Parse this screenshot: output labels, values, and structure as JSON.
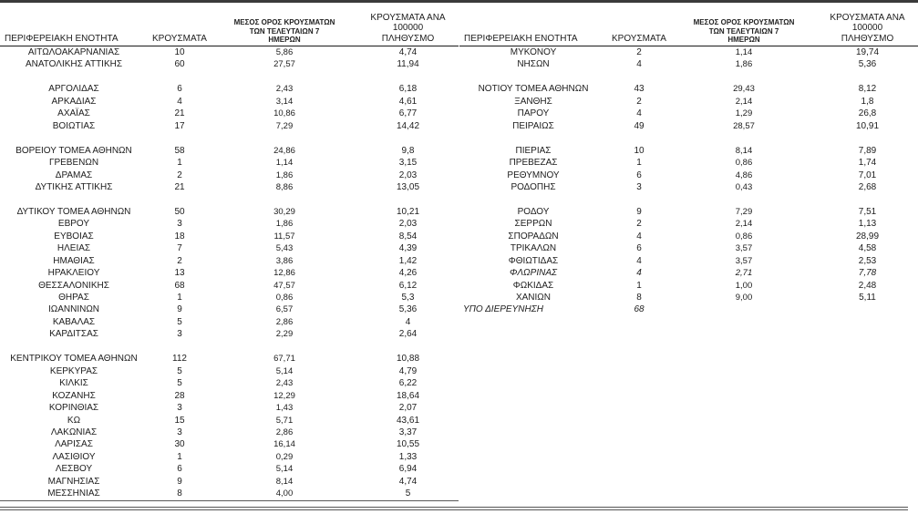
{
  "colors": {
    "background": "#ffffff",
    "text": "#1c1c1c",
    "rule_top": "#3a3a3a",
    "rule_header": "#1a1a1a",
    "rule_bottom_double": "#555555"
  },
  "headers": {
    "region": "ΠΕΡΙΦΕΡΕΙΑΚΗ ΕΝΟΤΗΤΑ",
    "cases": "ΚΡΟΥΣΜΑΤΑ",
    "avg7": "ΜΕΣΟΣ ΟΡΟΣ ΚΡΟΥΣΜΑΤΩΝ\nΤΩΝ ΤΕΛΕΥΤΑΙΩΝ 7\nΗΜΕΡΩΝ",
    "per100k": "ΚΡΟΥΣΜΑΤΑ ΑΝΑ 100000\nΠΛΗΘΥΣΜΟ"
  },
  "chart_data": {
    "type": "table",
    "columns": [
      "ΠΕΡΙΦΕΡΕΙΑΚΗ ΕΝΟΤΗΤΑ",
      "ΚΡΟΥΣΜΑΤΑ",
      "ΜΕΣΟΣ ΟΡΟΣ ΚΡΟΥΣΜΑΤΩΝ ΤΩΝ ΤΕΛΕΥΤΑΙΩΝ 7 ΗΜΕΡΩΝ",
      "ΚΡΟΥΣΜΑΤΑ ΑΝΑ 100000 ΠΛΗΘΥΣΜΟ"
    ],
    "left_rows": [
      {
        "name": "ΑΙΤΩΛΟΑΚΑΡΝΑΝΙΑΣ",
        "cases": "10",
        "avg7": "5,86",
        "per100k": "4,74"
      },
      {
        "name": "ΑΝΑΤΟΛΙΚΗΣ ΑΤΤΙΚΗΣ",
        "cases": "60",
        "avg7": "27,57",
        "per100k": "11,94"
      },
      {
        "blank": true
      },
      {
        "name": "ΑΡΓΟΛΙΔΑΣ",
        "cases": "6",
        "avg7": "2,43",
        "per100k": "6,18"
      },
      {
        "name": "ΑΡΚΑΔΙΑΣ",
        "cases": "4",
        "avg7": "3,14",
        "per100k": "4,61"
      },
      {
        "name": "ΑΧΑΪΑΣ",
        "cases": "21",
        "avg7": "10,86",
        "per100k": "6,77"
      },
      {
        "name": "ΒΟΙΩΤΙΑΣ",
        "cases": "17",
        "avg7": "7,29",
        "per100k": "14,42"
      },
      {
        "blank": true
      },
      {
        "name": "ΒΟΡΕΙΟΥ ΤΟΜΕΑ ΑΘΗΝΩΝ",
        "cases": "58",
        "avg7": "24,86",
        "per100k": "9,8"
      },
      {
        "name": "ΓΡΕΒΕΝΩΝ",
        "cases": "1",
        "avg7": "1,14",
        "per100k": "3,15"
      },
      {
        "name": "ΔΡΑΜΑΣ",
        "cases": "2",
        "avg7": "1,86",
        "per100k": "2,03"
      },
      {
        "name": "ΔΥΤΙΚΗΣ ΑΤΤΙΚΗΣ",
        "cases": "21",
        "avg7": "8,86",
        "per100k": "13,05"
      },
      {
        "blank": true
      },
      {
        "name": "ΔΥΤΙΚΟΥ ΤΟΜΕΑ ΑΘΗΝΩΝ",
        "cases": "50",
        "avg7": "30,29",
        "per100k": "10,21"
      },
      {
        "name": "ΕΒΡΟΥ",
        "cases": "3",
        "avg7": "1,86",
        "per100k": "2,03"
      },
      {
        "name": "ΕΥΒΟΙΑΣ",
        "cases": "18",
        "avg7": "11,57",
        "per100k": "8,54"
      },
      {
        "name": "ΗΛΕΙΑΣ",
        "cases": "7",
        "avg7": "5,43",
        "per100k": "4,39"
      },
      {
        "name": "ΗΜΑΘΙΑΣ",
        "cases": "2",
        "avg7": "3,86",
        "per100k": "1,42"
      },
      {
        "name": "ΗΡΑΚΛΕΙΟΥ",
        "cases": "13",
        "avg7": "12,86",
        "per100k": "4,26"
      },
      {
        "name": "ΘΕΣΣΑΛΟΝΙΚΗΣ",
        "cases": "68",
        "avg7": "47,57",
        "per100k": "6,12"
      },
      {
        "name": "ΘΗΡΑΣ",
        "cases": "1",
        "avg7": "0,86",
        "per100k": "5,3"
      },
      {
        "name": "ΙΩΑΝΝΙΝΩΝ",
        "cases": "9",
        "avg7": "6,57",
        "per100k": "5,36"
      },
      {
        "name": "ΚΑΒΑΛΑΣ",
        "cases": "5",
        "avg7": "2,86",
        "per100k": "4"
      },
      {
        "name": "ΚΑΡΔΙΤΣΑΣ",
        "cases": "3",
        "avg7": "2,29",
        "per100k": "2,64"
      },
      {
        "blank": true
      },
      {
        "name": "ΚΕΝΤΡΙΚΟΥ ΤΟΜΕΑ ΑΘΗΝΩΝ",
        "cases": "112",
        "avg7": "67,71",
        "per100k": "10,88"
      },
      {
        "name": "ΚΕΡΚΥΡΑΣ",
        "cases": "5",
        "avg7": "5,14",
        "per100k": "4,79"
      },
      {
        "name": "ΚΙΛΚΙΣ",
        "cases": "5",
        "avg7": "2,43",
        "per100k": "6,22"
      },
      {
        "name": "ΚΟΖΑΝΗΣ",
        "cases": "28",
        "avg7": "12,29",
        "per100k": "18,64"
      },
      {
        "name": "ΚΟΡΙΝΘΙΑΣ",
        "cases": "3",
        "avg7": "1,43",
        "per100k": "2,07"
      },
      {
        "name": "ΚΩ",
        "cases": "15",
        "avg7": "5,71",
        "per100k": "43,61"
      },
      {
        "name": "ΛΑΚΩΝΙΑΣ",
        "cases": "3",
        "avg7": "2,86",
        "per100k": "3,37"
      },
      {
        "name": "ΛΑΡΙΣΑΣ",
        "cases": "30",
        "avg7": "16,14",
        "per100k": "10,55"
      },
      {
        "name": "ΛΑΣΙΘΙΟΥ",
        "cases": "1",
        "avg7": "0,29",
        "per100k": "1,33"
      },
      {
        "name": "ΛΕΣΒΟΥ",
        "cases": "6",
        "avg7": "5,14",
        "per100k": "6,94"
      },
      {
        "name": "ΜΑΓΝΗΣΙΑΣ",
        "cases": "9",
        "avg7": "8,14",
        "per100k": "4,74"
      },
      {
        "name": "ΜΕΣΣΗΝΙΑΣ",
        "cases": "8",
        "avg7": "4,00",
        "per100k": "5"
      }
    ],
    "right_rows": [
      {
        "name": "ΜΥΚΟΝΟΥ",
        "cases": "2",
        "avg7": "1,14",
        "per100k": "19,74"
      },
      {
        "name": "ΝΗΣΩΝ",
        "cases": "4",
        "avg7": "1,86",
        "per100k": "5,36"
      },
      {
        "blank": true
      },
      {
        "name": "ΝΟΤΙΟΥ ΤΟΜΕΑ ΑΘΗΝΩΝ",
        "cases": "43",
        "avg7": "29,43",
        "per100k": "8,12"
      },
      {
        "name": "ΞΑΝΘΗΣ",
        "cases": "2",
        "avg7": "2,14",
        "per100k": "1,8"
      },
      {
        "name": "ΠΑΡΟΥ",
        "cases": "4",
        "avg7": "1,29",
        "per100k": "26,8"
      },
      {
        "name": "ΠΕΙΡΑΙΩΣ",
        "cases": "49",
        "avg7": "28,57",
        "per100k": "10,91"
      },
      {
        "blank": true
      },
      {
        "name": "ΠΙΕΡΙΑΣ",
        "cases": "10",
        "avg7": "8,14",
        "per100k": "7,89"
      },
      {
        "name": "ΠΡΕΒΕΖΑΣ",
        "cases": "1",
        "avg7": "0,86",
        "per100k": "1,74"
      },
      {
        "name": "ΡΕΘΥΜΝΟΥ",
        "cases": "6",
        "avg7": "4,86",
        "per100k": "7,01"
      },
      {
        "name": "ΡΟΔΟΠΗΣ",
        "cases": "3",
        "avg7": "0,43",
        "per100k": "2,68"
      },
      {
        "blank": true
      },
      {
        "name": "ΡΟΔΟΥ",
        "cases": "9",
        "avg7": "7,29",
        "per100k": "7,51"
      },
      {
        "name": "ΣΕΡΡΩΝ",
        "cases": "2",
        "avg7": "2,14",
        "per100k": "1,13"
      },
      {
        "name": "ΣΠΟΡΑΔΩΝ",
        "cases": "4",
        "avg7": "0,86",
        "per100k": "28,99"
      },
      {
        "name": "ΤΡΙΚΑΛΩΝ",
        "cases": "6",
        "avg7": "3,57",
        "per100k": "4,58"
      },
      {
        "name": "ΦΘΙΩΤΙΔΑΣ",
        "cases": "4",
        "avg7": "3,57",
        "per100k": "2,53"
      },
      {
        "name": "ΦΛΩΡΙΝΑΣ",
        "cases": "4",
        "avg7": "2,71",
        "per100k": "7,78",
        "italic": true
      },
      {
        "name": "ΦΩΚΙΔΑΣ",
        "cases": "1",
        "avg7": "1,00",
        "per100k": "2,48"
      },
      {
        "name": "ΧΑΝΙΩΝ",
        "cases": "8",
        "avg7": "9,00",
        "per100k": "5,11"
      },
      {
        "name": "ΥΠΟ ΔΙΕΡΕΥΝΗΣΗ",
        "cases": "68",
        "avg7": "",
        "per100k": "",
        "italic": true,
        "align_left": true
      }
    ]
  }
}
